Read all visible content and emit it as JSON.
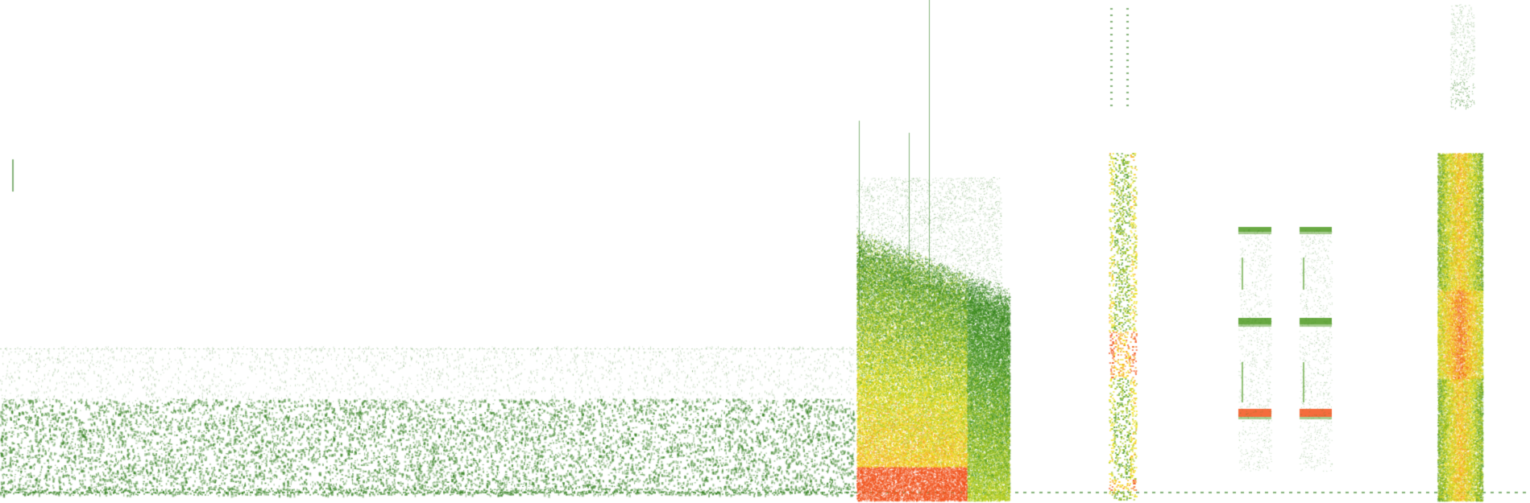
{
  "spectrogram": {
    "background_color": "#ffffff",
    "colormap": [
      "#2e7d1a",
      "#4f9a22",
      "#a8c81e",
      "#f2e21a",
      "#f7a21a",
      "#f2521a"
    ],
    "axes_visible": false,
    "labels_visible": false
  }
}
